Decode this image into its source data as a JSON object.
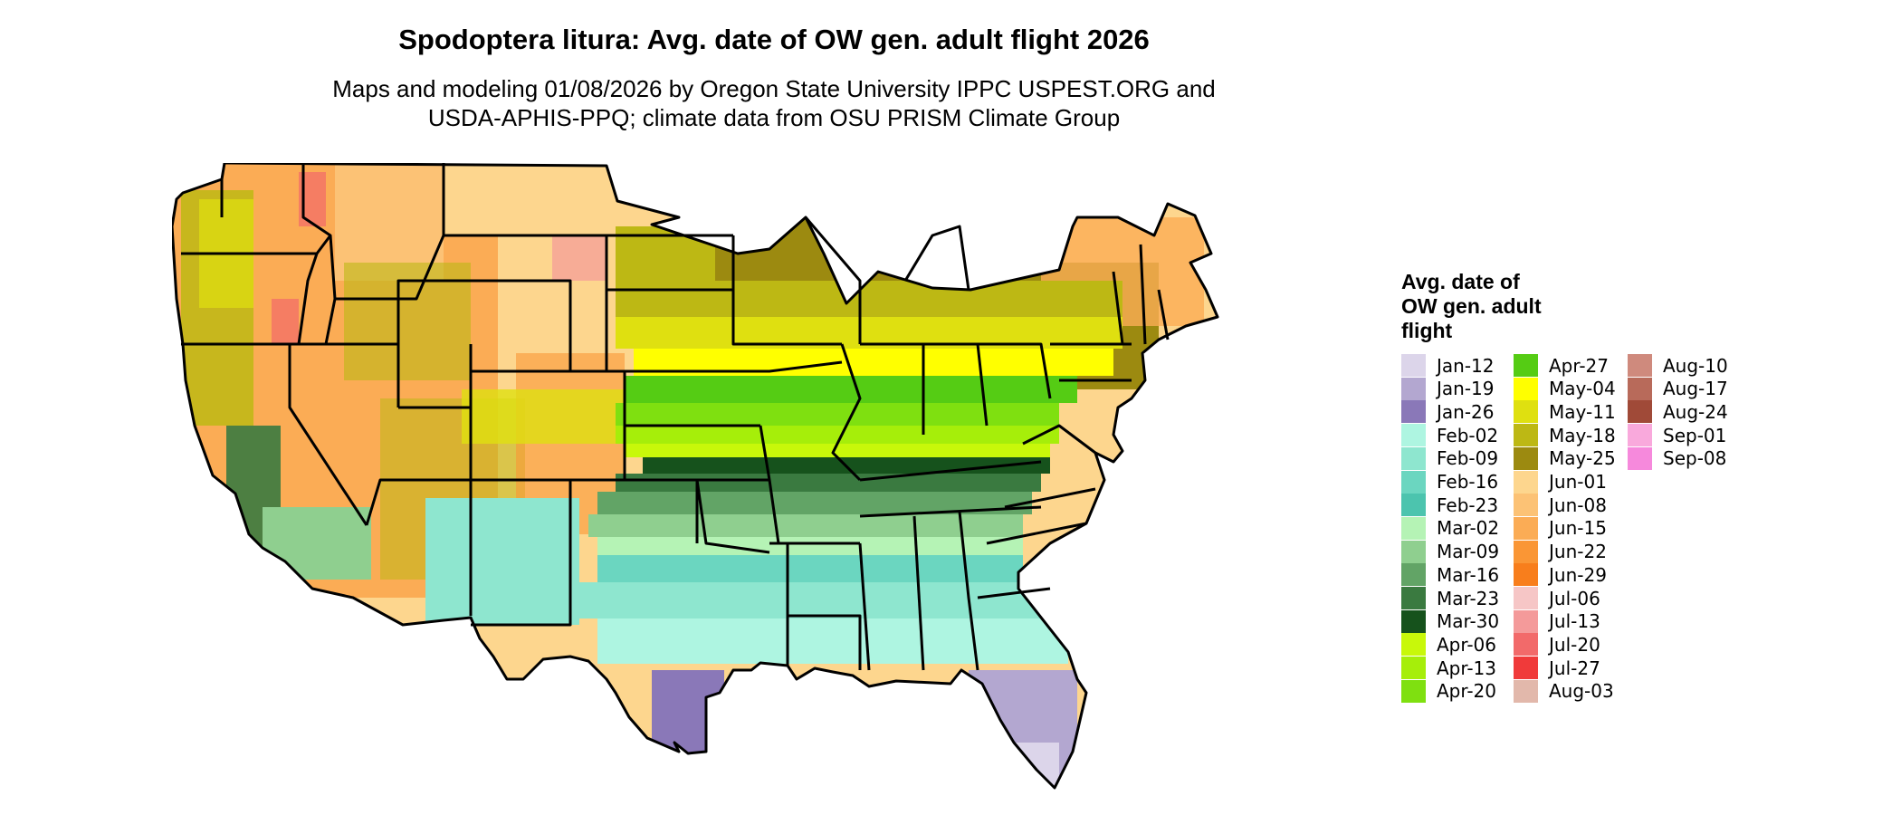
{
  "title": "Spodoptera litura: Avg. date of OW gen. adult flight 2026",
  "subtitle_line1": "Maps and modeling 01/08/2026 by Oregon State University IPPC USPEST.ORG and",
  "subtitle_line2": "USDA-APHIS-PPQ; climate data from OSU PRISM Climate Group",
  "legend": {
    "title_line1": "Avg. date of",
    "title_line2": "OW gen. adult",
    "title_line3": "flight",
    "items": [
      {
        "label": "Jan-12",
        "color": "#dcd5ea"
      },
      {
        "label": "Jan-19",
        "color": "#b3a7d0"
      },
      {
        "label": "Jan-26",
        "color": "#8a78b8"
      },
      {
        "label": "Feb-02",
        "color": "#aef5e1"
      },
      {
        "label": "Feb-09",
        "color": "#8ee6cf"
      },
      {
        "label": "Feb-16",
        "color": "#6bd6c0"
      },
      {
        "label": "Feb-23",
        "color": "#4cc4ae"
      },
      {
        "label": "Mar-02",
        "color": "#b5f3b5"
      },
      {
        "label": "Mar-09",
        "color": "#8fcf8f"
      },
      {
        "label": "Mar-16",
        "color": "#62a466"
      },
      {
        "label": "Mar-23",
        "color": "#3a7a40"
      },
      {
        "label": "Mar-30",
        "color": "#16521c"
      },
      {
        "label": "Apr-06",
        "color": "#c8f80a"
      },
      {
        "label": "Apr-13",
        "color": "#a6ee0a"
      },
      {
        "label": "Apr-20",
        "color": "#7fe010"
      },
      {
        "label": "Apr-27",
        "color": "#55cc14"
      },
      {
        "label": "May-04",
        "color": "#ffff00"
      },
      {
        "label": "May-11",
        "color": "#dfe010"
      },
      {
        "label": "May-18",
        "color": "#bdb814"
      },
      {
        "label": "May-25",
        "color": "#9c8a10"
      },
      {
        "label": "Jun-01",
        "color": "#fdd68e"
      },
      {
        "label": "Jun-08",
        "color": "#fcc275"
      },
      {
        "label": "Jun-15",
        "color": "#fbac55"
      },
      {
        "label": "Jun-22",
        "color": "#fa9635"
      },
      {
        "label": "Jun-29",
        "color": "#f87e1c"
      },
      {
        "label": "Jul-06",
        "color": "#f6c6c6"
      },
      {
        "label": "Jul-13",
        "color": "#f49a9a"
      },
      {
        "label": "Jul-20",
        "color": "#f26a6a"
      },
      {
        "label": "Jul-27",
        "color": "#f03a3a"
      },
      {
        "label": "Aug-03",
        "color": "#e2b8ab"
      },
      {
        "label": "Aug-10",
        "color": "#cf8a7d"
      },
      {
        "label": "Aug-17",
        "color": "#b86a5a"
      },
      {
        "label": "Aug-24",
        "color": "#a04a38"
      },
      {
        "label": "Sep-01",
        "color": "#f9a9dc"
      },
      {
        "label": "Sep-08",
        "color": "#f689dc"
      }
    ]
  }
}
